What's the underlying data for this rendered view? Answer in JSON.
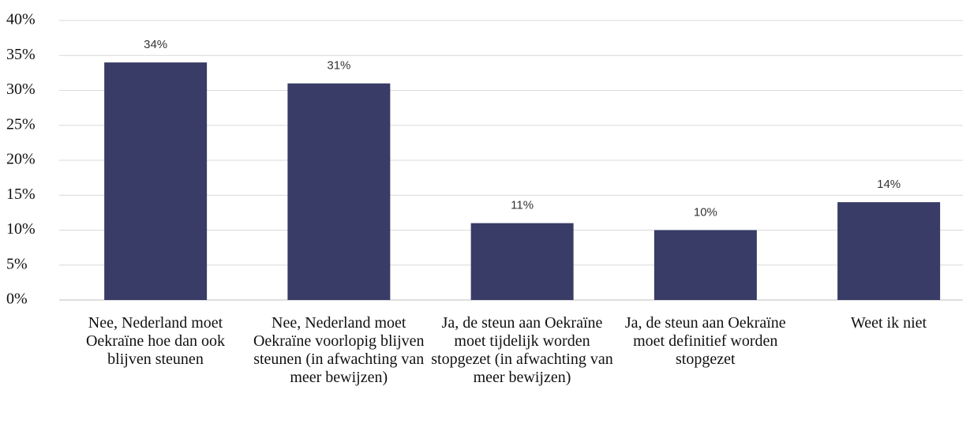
{
  "chart_data": {
    "type": "bar",
    "categories": [
      "Nee, Nederland moet Oekraïne hoe dan ook blijven steunen",
      "Nee, Nederland moet Oekraïne voorlopig blijven steunen (in afwachting van meer bewijzen)",
      "Ja, de steun aan Oekraïne moet tijdelijk worden stopgezet (in afwachting van meer bewijzen)",
      "Ja, de steun aan Oekraïne moet definitief worden stopgezet",
      "Weet ik niet"
    ],
    "values": [
      34,
      31,
      11,
      10,
      14
    ],
    "value_labels": [
      "34%",
      "31%",
      "11%",
      "10%",
      "14%"
    ],
    "color": "#383c66",
    "ylim": [
      0,
      40
    ],
    "yticks": [
      {
        "value": 0,
        "label": "0%"
      },
      {
        "value": 5,
        "label": "5%"
      },
      {
        "value": 10,
        "label": "10%"
      },
      {
        "value": 15,
        "label": "15%"
      },
      {
        "value": 20,
        "label": "20%"
      },
      {
        "value": 25,
        "label": "25%"
      },
      {
        "value": 30,
        "label": "30%"
      },
      {
        "value": 35,
        "label": "35%"
      },
      {
        "value": 40,
        "label": "40%"
      }
    ],
    "grid": true
  }
}
